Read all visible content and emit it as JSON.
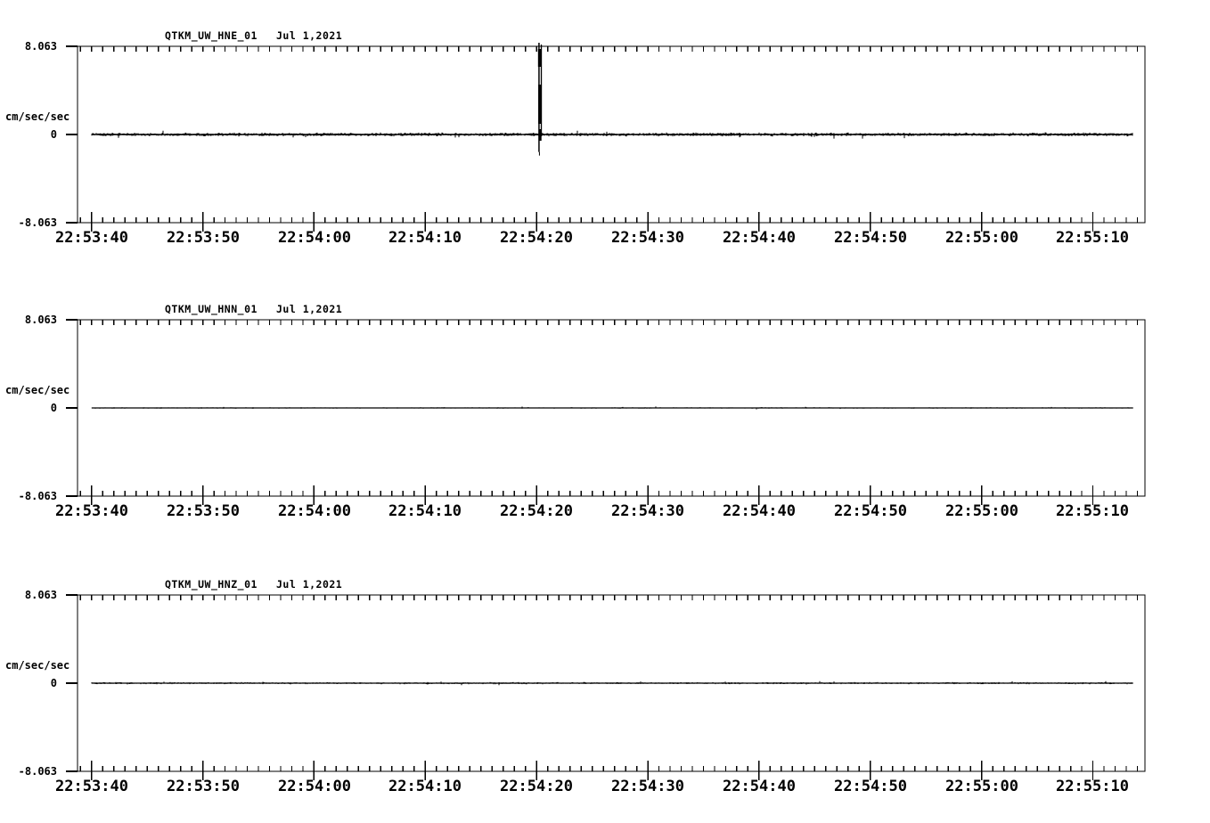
{
  "page": {
    "background_color": "#ffffff",
    "foreground_color": "#000000"
  },
  "chart_data": [
    {
      "type": "line",
      "title": "QTKM_UW_HNE_01",
      "date": "Jul 1,2021",
      "ylabel": "cm/sec/sec",
      "yticks": [
        "8.063",
        "0",
        "-8.063"
      ],
      "ylim": [
        -8.063,
        8.063
      ],
      "xtick_labels": [
        "22:53:40",
        "22:53:50",
        "22:54:00",
        "22:54:10",
        "22:54:20",
        "22:54:30",
        "22:54:40",
        "22:54:50",
        "22:55:00",
        "22:55:10"
      ],
      "minor_tick_interval_s": 1,
      "major_tick_interval_s": 10,
      "baseline_value": 0,
      "noise_amplitude": 0.13,
      "grid": false,
      "events": [
        {
          "time": "22:54:20",
          "time_offset_s": 40.3,
          "amplitude_peak": 8.06,
          "amplitude_trough": -1.6,
          "description": "impulsive transient spike reaching top of scale"
        }
      ]
    },
    {
      "type": "line",
      "title": "QTKM_UW_HNN_01",
      "date": "Jul 1,2021",
      "ylabel": "cm/sec/sec",
      "yticks": [
        "8.063",
        "0",
        "-8.063"
      ],
      "ylim": [
        -8.063,
        8.063
      ],
      "xtick_labels": [
        "22:53:40",
        "22:53:50",
        "22:54:00",
        "22:54:10",
        "22:54:20",
        "22:54:30",
        "22:54:40",
        "22:54:50",
        "22:55:00",
        "22:55:10"
      ],
      "minor_tick_interval_s": 1,
      "major_tick_interval_s": 10,
      "baseline_value": 0,
      "noise_amplitude": 0.045,
      "grid": false,
      "events": []
    },
    {
      "type": "line",
      "title": "QTKM_UW_HNZ_01",
      "date": "Jul 1,2021",
      "ylabel": "cm/sec/sec",
      "yticks": [
        "8.063",
        "0",
        "-8.063"
      ],
      "ylim": [
        -8.063,
        8.063
      ],
      "xtick_labels": [
        "22:53:40",
        "22:53:50",
        "22:54:00",
        "22:54:10",
        "22:54:20",
        "22:54:30",
        "22:54:40",
        "22:54:50",
        "22:55:00",
        "22:55:10"
      ],
      "minor_tick_interval_s": 1,
      "major_tick_interval_s": 10,
      "baseline_value": 0,
      "noise_amplitude": 0.07,
      "grid": false,
      "events": []
    }
  ]
}
